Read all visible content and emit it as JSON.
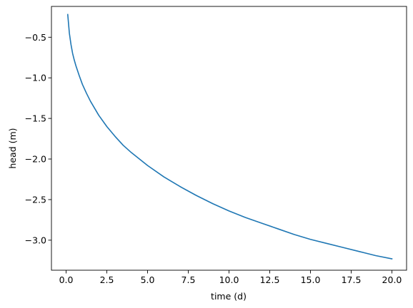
{
  "chart_data": {
    "type": "line",
    "title": "",
    "xlabel": "time (d)",
    "ylabel": "head (m)",
    "xlim": [
      -0.9,
      20.9
    ],
    "ylim": [
      -3.37,
      -0.12
    ],
    "xticks": [
      0.0,
      2.5,
      5.0,
      7.5,
      10.0,
      12.5,
      15.0,
      17.5,
      20.0
    ],
    "xtick_labels": [
      "0.0",
      "2.5",
      "5.0",
      "7.5",
      "10.0",
      "12.5",
      "15.0",
      "17.5",
      "20.0"
    ],
    "yticks": [
      -0.5,
      -1.0,
      -1.5,
      -2.0,
      -2.5,
      -3.0
    ],
    "ytick_labels": [
      "−0.5",
      "−1.0",
      "−1.5",
      "−2.0",
      "−2.5",
      "−3.0"
    ],
    "grid": false,
    "legend": "none",
    "series": [
      {
        "color": "#1f77b4",
        "x": [
          0.1,
          0.2,
          0.3,
          0.4,
          0.5,
          0.6,
          0.8,
          1.0,
          1.25,
          1.5,
          2.0,
          2.5,
          3.0,
          3.5,
          4.0,
          5.0,
          6.0,
          7.0,
          8.0,
          9.0,
          10.0,
          11.0,
          12.0,
          13.0,
          14.0,
          15.0,
          16.0,
          17.0,
          18.0,
          19.0,
          20.0
        ],
        "y": [
          -0.22,
          -0.45,
          -0.59,
          -0.7,
          -0.78,
          -0.85,
          -0.97,
          -1.08,
          -1.19,
          -1.29,
          -1.46,
          -1.6,
          -1.72,
          -1.83,
          -1.92,
          -2.08,
          -2.22,
          -2.34,
          -2.45,
          -2.55,
          -2.64,
          -2.72,
          -2.79,
          -2.86,
          -2.93,
          -2.99,
          -3.04,
          -3.09,
          -3.14,
          -3.19,
          -3.23
        ]
      }
    ]
  }
}
